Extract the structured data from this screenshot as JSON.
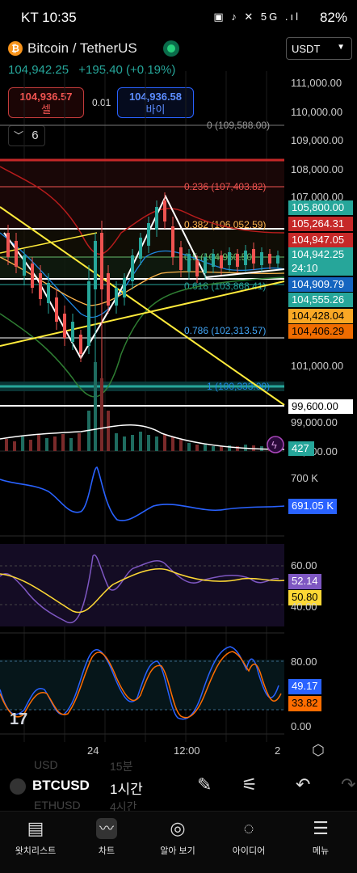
{
  "status_bar": {
    "time": "KT 10:35",
    "icons": "▣ ♪ ✕ 5G .ıl",
    "battery": "82%"
  },
  "header": {
    "symbol_title": "Bitcoin / TetherUS",
    "coin_glyph": "₿",
    "currency_select": "USDT",
    "last_price": "104,942.25",
    "change": "+195.40 (+0.19%)",
    "sell_price": "104,936.57",
    "sell_label": "셀",
    "spread": "0.01",
    "buy_price": "104,936.58",
    "buy_label": "바이",
    "interval_count": "6"
  },
  "fib_levels": [
    {
      "label": "0 (109,588.00)",
      "color": "#9a9a9a"
    },
    {
      "label": "0.236 (107,403.82)",
      "color": "#ef5350"
    },
    {
      "label": "0.382 (106,052.59)",
      "color": "#ffb74d"
    },
    {
      "label": "0.5 (104,960.50)",
      "color": "#66bb6a"
    },
    {
      "label": "0.618 (103,868.41)",
      "color": "#26a69a"
    },
    {
      "label": "0.786 (102,313.57)",
      "color": "#42a5f5"
    },
    {
      "label": "1 (100,333.00)",
      "color": "#1e88e5"
    }
  ],
  "price_axis": [
    "111,000.00",
    "110,000.00",
    "109,000.00",
    "108,000.00",
    "107,000.00",
    "101,000.00",
    "99,000.00",
    "98,000.00"
  ],
  "price_tags": [
    {
      "value": "105,800.00",
      "bg": "#26a69a"
    },
    {
      "value": "105,264.31",
      "bg": "#c62828"
    },
    {
      "value": "104,947.05",
      "bg": "#c62828"
    },
    {
      "value": "104,942.25",
      "bg": "#26a69a"
    },
    {
      "value": "24:10",
      "bg": "#26a69a"
    },
    {
      "value": "104,909.79",
      "bg": "#1565c0"
    },
    {
      "value": "104,555.26",
      "bg": "#26a69a"
    },
    {
      "value": "104,428.04",
      "bg": "#f9a825"
    },
    {
      "value": "104,406.29",
      "bg": "#ef6c00"
    },
    {
      "value": "99,600.00",
      "bg": "#ffffff"
    },
    {
      "value": "427",
      "bg": "#26a69a"
    }
  ],
  "indicator_1": {
    "axis": [
      "700 K"
    ],
    "value": "691.05 K"
  },
  "indicator_2": {
    "axis": [
      "60.00",
      "40.00"
    ],
    "value_a": "52.14",
    "value_b": "50.80"
  },
  "indicator_3": {
    "axis": [
      "80.00",
      "0.00"
    ],
    "value_a": "49.17",
    "value_b": "33.82"
  },
  "time_axis": [
    "24",
    "12:00",
    "2"
  ],
  "watermark": "17",
  "toolbar": {
    "ghost_top_1": "USD",
    "ghost_top_2": "15분",
    "symbol": "BTCUSD",
    "interval": "1시간",
    "ghost_bottom_1": "ETHUSD",
    "ghost_bottom_2": "4시간"
  },
  "bottom_nav": [
    {
      "label": "왓치리스트",
      "icon": "watchlist-icon"
    },
    {
      "label": "차트",
      "icon": "chart-icon"
    },
    {
      "label": "알아 보기",
      "icon": "compass-icon"
    },
    {
      "label": "아이디어",
      "icon": "lightbulb-icon"
    },
    {
      "label": "메뉴",
      "icon": "menu-icon"
    }
  ]
}
